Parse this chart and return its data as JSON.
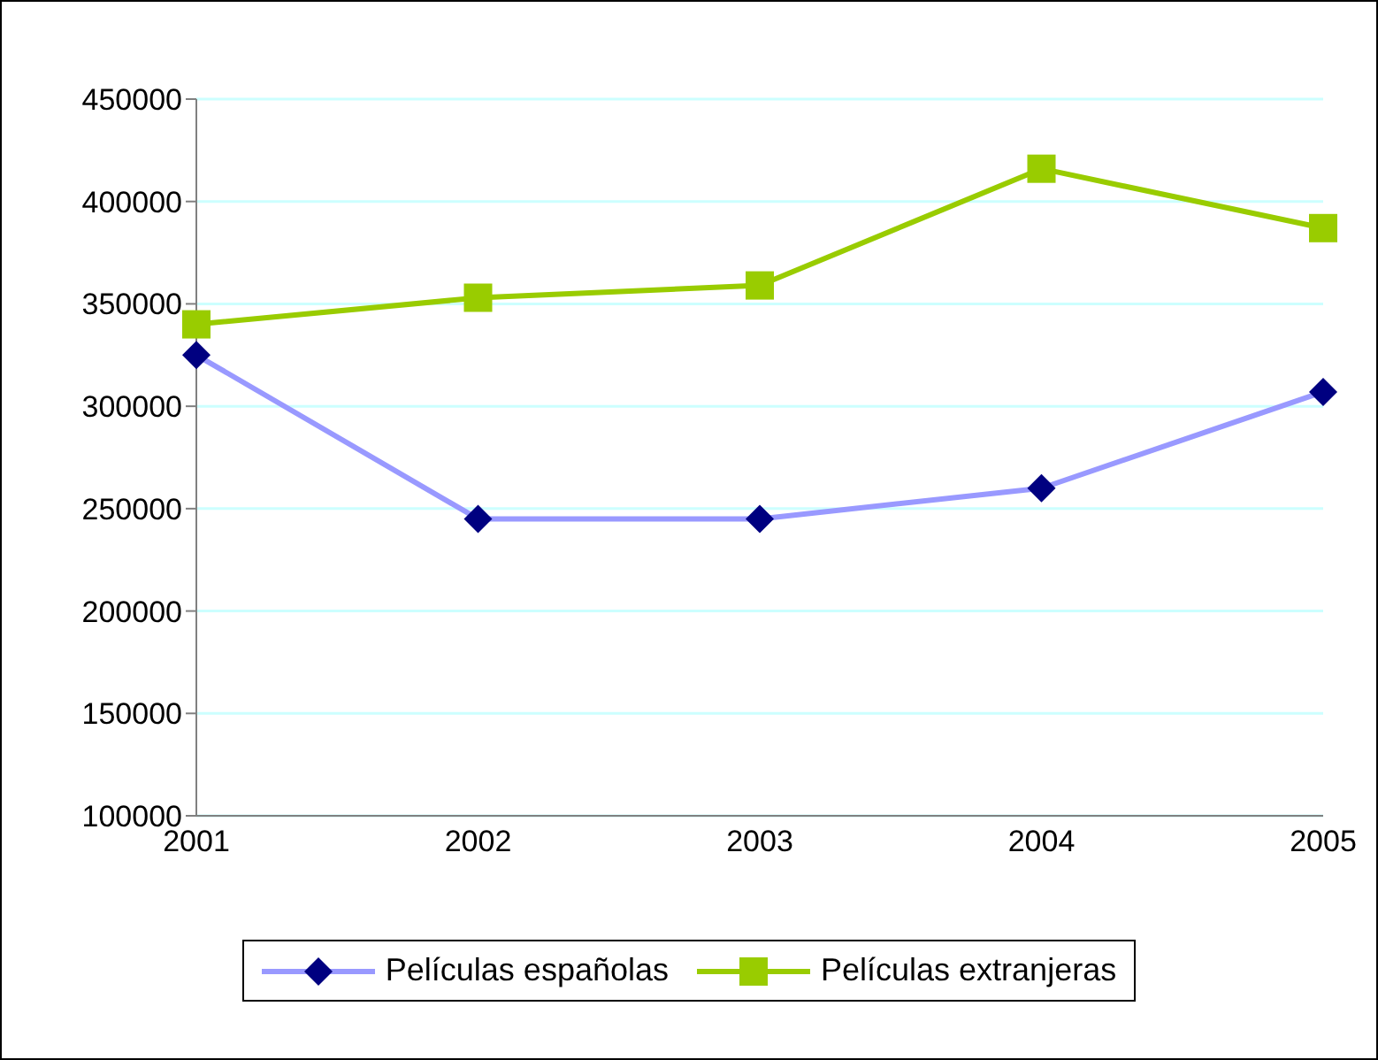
{
  "chart_data": {
    "type": "line",
    "categories": [
      "2001",
      "2002",
      "2003",
      "2004",
      "2005"
    ],
    "series": [
      {
        "name": "Películas españolas",
        "color": "#9999ff",
        "colors": [
          "#000080",
          "#000080",
          "#000080",
          "#000080",
          "#000080"
        ],
        "marker": "diamond",
        "values": [
          325000,
          245000,
          245000,
          260000,
          307000
        ]
      },
      {
        "name": "Películas extranjeras",
        "color": "#99cc00",
        "colors": [
          "#99cc00",
          "#99cc00",
          "#99cc00",
          "#99cc00",
          "#99cc00"
        ],
        "marker": "square",
        "values": [
          340000,
          353000,
          359000,
          416000,
          387000
        ]
      }
    ],
    "ylim": [
      100000,
      450000
    ],
    "yticks": [
      100000,
      150000,
      200000,
      250000,
      300000,
      350000,
      400000,
      450000
    ],
    "grid": "y",
    "legend": "bottom"
  }
}
